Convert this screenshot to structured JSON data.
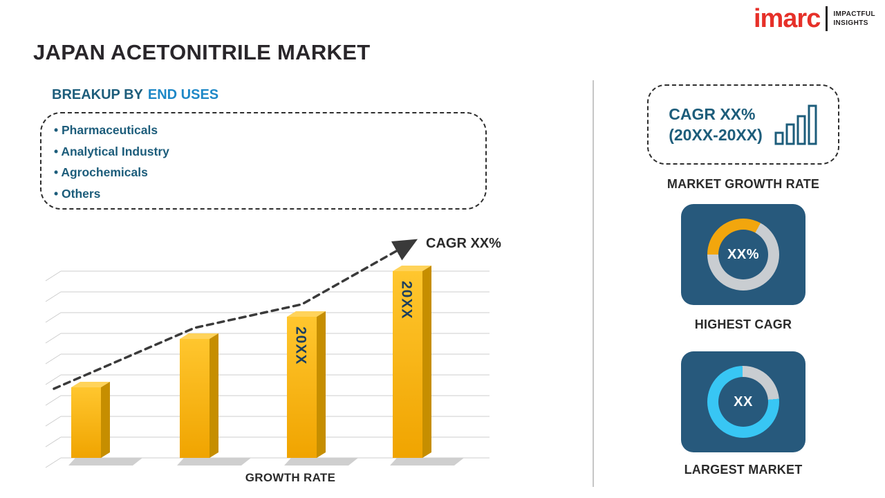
{
  "logo": {
    "brand": "imarc",
    "tagline_line1": "IMPACTFUL",
    "tagline_line2": "INSIGHTS",
    "brand_color": "#E63029"
  },
  "page_title": "JAPAN ACETONITRILE MARKET",
  "breakup": {
    "heading_prefix": "BREAKUP BY",
    "heading_highlight": "END USES",
    "items": [
      "Pharmaceuticals",
      "Analytical Industry",
      "Agrochemicals",
      "Others"
    ]
  },
  "chart_data": {
    "type": "bar",
    "title": "",
    "xlabel": "GROWTH RATE",
    "ylabel": "",
    "categories": [
      "",
      "",
      "20XX",
      "20XX"
    ],
    "values": [
      28,
      47,
      56,
      74
    ],
    "ylim": [
      0,
      100
    ],
    "grid": true,
    "legend": false,
    "bar_color": "#F5AE01",
    "trend_annotation": "CAGR XX%",
    "trend_style": "dashed-arrow"
  },
  "right_panel": {
    "cagr_box": {
      "line1": "CAGR XX%",
      "line2": "(20XX-20XX)"
    },
    "market_growth_rate_label": "MARKET GROWTH RATE",
    "highest_cagr": {
      "value": "XX%",
      "label": "HIGHEST CAGR",
      "ring_color": "#F2A60D",
      "ring_track": "#C9CDD1",
      "ring_percent": 33,
      "ring_start_deg": 270,
      "tile_color": "#27597C"
    },
    "largest_market": {
      "value": "XX",
      "label": "LARGEST MARKET",
      "ring_color": "#38C6F4",
      "ring_track": "#C9CDD1",
      "ring_percent": 76,
      "ring_start_deg": 85,
      "tile_color": "#27597C"
    }
  }
}
